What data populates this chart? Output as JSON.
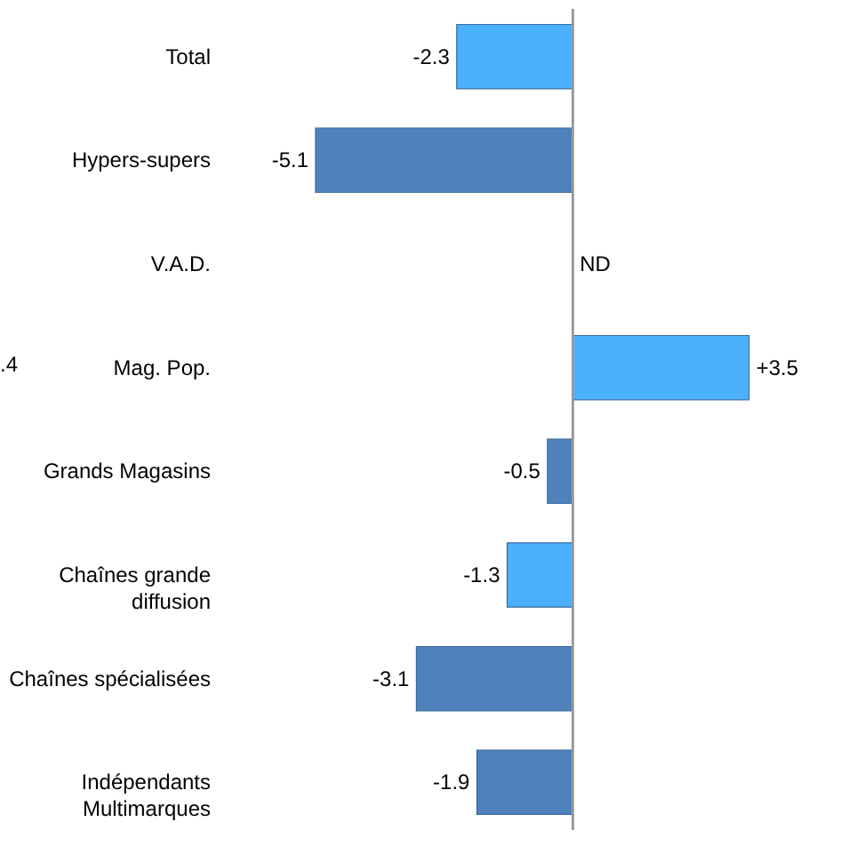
{
  "chart_data": {
    "type": "bar",
    "orientation": "horizontal",
    "categories": [
      "Total",
      "Hypers-supers",
      "V.A.D.",
      "Mag. Pop.",
      "Grands Magasins",
      "Chaînes grande diffusion",
      "Chaînes spécialisées",
      "Indépendants Multimarques"
    ],
    "values": [
      -2.3,
      -5.1,
      null,
      3.5,
      -0.5,
      -1.3,
      -3.1,
      -1.9
    ],
    "value_labels": [
      "-2.3",
      "-5.1",
      "ND",
      "+3.5",
      "-0.5",
      "-1.3",
      "-3.1",
      "-1.9"
    ],
    "colors": [
      "#4bb1ff",
      "#4f81bd",
      "#4bb1ff",
      "#4bb1ff",
      "#4f81bd",
      "#4bb1ff",
      "#4f81bd",
      "#4f81bd"
    ],
    "annotations": [
      ".4"
    ]
  }
}
